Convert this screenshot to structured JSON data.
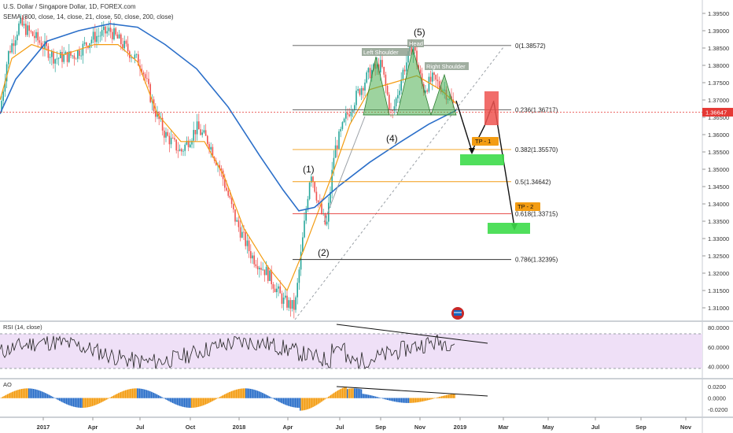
{
  "header": {
    "title": "U.S. Dollar / Singapore Dollar, 1D, FOREX.com",
    "ma_legend": "SEMA (800, close, 14, close, 21, close, 50, close, 200, close)"
  },
  "panes": {
    "rsi_label": "RSI (14, close)",
    "ao_label": "AO"
  },
  "chart_data": {
    "type": "candlestick",
    "symbol": "USD/SGD",
    "timeframe": "1D",
    "x_ticks": [
      "2017",
      "Apr",
      "Jul",
      "Oct",
      "2018",
      "Apr",
      "Jul",
      "Sep",
      "Nov",
      "2019",
      "Mar",
      "May",
      "Jul",
      "Sep",
      "Nov"
    ],
    "y_ticks": [
      "1.39500",
      "1.39000",
      "1.38500",
      "1.38000",
      "1.37500",
      "1.37000",
      "1.36500",
      "1.36000",
      "1.35500",
      "1.35000",
      "1.34500",
      "1.34000",
      "1.33500",
      "1.33000",
      "1.32500",
      "1.32000",
      "1.31500",
      "1.31000"
    ],
    "ylim": [
      1.3075,
      1.3975
    ],
    "last_price": "1.36647",
    "fib_levels": [
      {
        "label": "0(1.38572)",
        "value": 1.38572
      },
      {
        "label": "0.236(1.36717)",
        "value": 1.36717
      },
      {
        "label": "0.382(1.35570)",
        "value": 1.3557
      },
      {
        "label": "0.5(1.34642)",
        "value": 1.34642
      },
      {
        "label": "0.618(1.33715)",
        "value": 1.33715
      },
      {
        "label": "0.786(1.32395)",
        "value": 1.32395
      }
    ],
    "wave_labels": [
      "(1)",
      "(2)",
      "(4)",
      "(5)"
    ],
    "pattern_labels": [
      "Left Shoulder",
      "Head",
      "Right Shoulder"
    ],
    "targets": [
      "TP - 1",
      "TP - 2"
    ],
    "rsi": {
      "y_ticks": [
        "80.0000",
        "60.0000",
        "40.0000"
      ],
      "ylim": [
        30,
        85
      ]
    },
    "ao": {
      "y_ticks": [
        "0.0200",
        "0.0000",
        "-0.0200"
      ],
      "ylim": [
        -0.03,
        0.03
      ]
    }
  },
  "colors": {
    "up": "#26a69a",
    "down": "#ef5350",
    "sma_fast": "#f39c12",
    "sma_slow": "#2b6fc9",
    "pattern": "#4caf50",
    "last_price": "#e53935"
  }
}
